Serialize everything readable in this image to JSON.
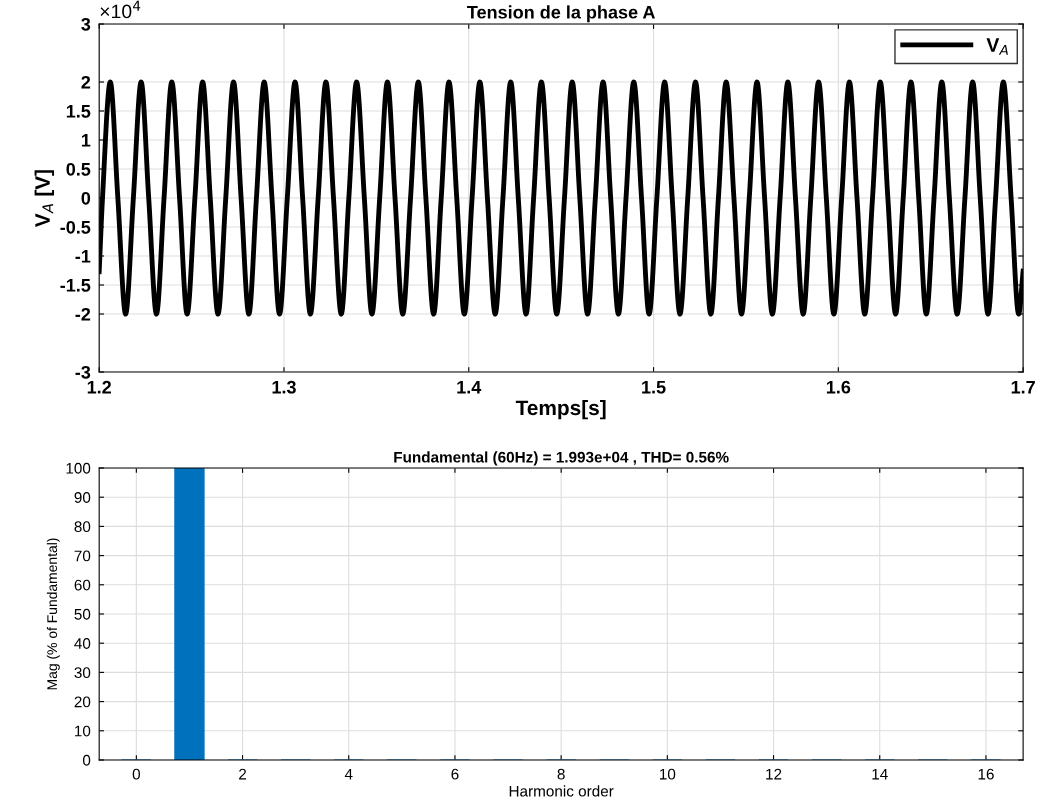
{
  "chart_data": [
    {
      "type": "line",
      "title": "Tension de la phase A",
      "xlabel": "Temps[s]",
      "ylabel": "V$_{A}$ [V]",
      "annotations": [
        "×10$^{4}$"
      ],
      "xlim": [
        1.2,
        1.7
      ],
      "xticks": [
        1.2,
        1.3,
        1.4,
        1.5,
        1.6,
        1.7
      ],
      "ylim": [
        -3,
        3
      ],
      "yticks": [
        -3,
        -2,
        -1.5,
        -1,
        -0.5,
        0,
        0.5,
        1,
        1.5,
        2,
        3
      ],
      "grid": true,
      "legend": "top right",
      "marker": "none",
      "line_style": "solid",
      "series": [
        {
          "name": "V$_{A}$",
          "color": "#000000",
          "x": [
            1.2,
            1.2018,
            1.206,
            1.2101,
            1.2143,
            1.2185,
            1.2227,
            1.2268,
            1.231,
            1.2351,
            1.2393,
            1.2435,
            1.2476,
            1.2518,
            1.256,
            1.2601,
            1.2643,
            1.2685,
            1.2727,
            1.2768,
            1.281,
            1.2851,
            1.2893,
            1.2935,
            1.2976,
            1.3018,
            1.306,
            1.3101,
            1.3143,
            1.3185,
            1.3227,
            1.3268,
            1.331,
            1.3351,
            1.3393,
            1.3435,
            1.3476,
            1.3518,
            1.356,
            1.3601,
            1.3643,
            1.3685,
            1.3727,
            1.3768,
            1.381,
            1.3851,
            1.3893,
            1.3935,
            1.3976,
            1.4018,
            1.406,
            1.4101,
            1.4143,
            1.4185,
            1.4227,
            1.4268,
            1.431,
            1.4351,
            1.4393,
            1.4435,
            1.4476,
            1.4518,
            1.456,
            1.4601,
            1.4643,
            1.4685,
            1.4727,
            1.4768,
            1.481,
            1.4851,
            1.4893,
            1.4935,
            1.4976,
            1.5018,
            1.506,
            1.5101,
            1.5143,
            1.5185,
            1.5227,
            1.5268,
            1.531,
            1.5351,
            1.5393,
            1.5435,
            1.5476,
            1.5518,
            1.556,
            1.5601,
            1.5643,
            1.5685,
            1.5727,
            1.5768,
            1.581,
            1.5851,
            1.5893,
            1.5935,
            1.5976,
            1.6018,
            1.606,
            1.6101,
            1.6143,
            1.6185,
            1.6227,
            1.6268,
            1.631,
            1.6351,
            1.6393,
            1.6435,
            1.6476,
            1.6518,
            1.656,
            1.6601,
            1.6643,
            1.6685,
            1.6727,
            1.6768,
            1.681,
            1.6851,
            1.6893,
            1.6935,
            1.6976,
            1.7
          ],
          "values": [
            -1.27,
            0,
            2,
            0,
            -2,
            0,
            2,
            0,
            -2,
            0,
            2,
            0,
            -2,
            0,
            2,
            0,
            -2,
            0,
            2,
            0,
            -2,
            0,
            2,
            0,
            -2,
            0,
            2,
            0,
            -2,
            0,
            2,
            0,
            -2,
            0,
            2,
            0,
            -2,
            0,
            2,
            0,
            -2,
            0,
            2,
            0,
            -2,
            0,
            2,
            0,
            -2,
            0,
            2,
            0,
            -2,
            0,
            2,
            0,
            -2,
            0,
            2,
            0,
            -2,
            0,
            2,
            0,
            -2,
            0,
            2,
            0,
            -2,
            0,
            2,
            0,
            -2,
            0,
            2,
            0,
            -2,
            0,
            2,
            0,
            -2,
            0,
            2,
            0,
            -2,
            0,
            2,
            0,
            -2,
            0,
            2,
            0,
            -2,
            0,
            2,
            0,
            -2,
            0,
            2,
            0,
            -2,
            0,
            2,
            0,
            -2,
            0,
            2,
            0,
            -2,
            0,
            2,
            0,
            -2,
            0,
            2,
            0,
            -2,
            0,
            2,
            0,
            -2,
            -1.26
          ]
        }
      ]
    },
    {
      "type": "bar",
      "title": "Fundamental (60Hz) = 1.993e+04 , THD= 0.56%",
      "xlabel": "Harmonic order",
      "ylabel": "Mag (% of Fundamental)",
      "x": [
        0,
        1,
        2,
        3,
        4,
        5,
        6,
        7,
        8,
        9,
        10,
        11,
        12,
        13,
        14,
        15,
        16
      ],
      "values": [
        0,
        100,
        0,
        0,
        0,
        0,
        0,
        0,
        0,
        0,
        0,
        0,
        0,
        0,
        0,
        0,
        0
      ],
      "color": "#0072bd",
      "xlim": [
        -0.7,
        16.7
      ],
      "xticks": [
        0,
        2,
        4,
        6,
        8,
        10,
        12,
        14,
        16
      ],
      "ylim": [
        0,
        100
      ],
      "yticks": [
        0,
        10,
        20,
        30,
        40,
        50,
        60,
        70,
        80,
        90,
        100
      ],
      "grid": true
    }
  ]
}
